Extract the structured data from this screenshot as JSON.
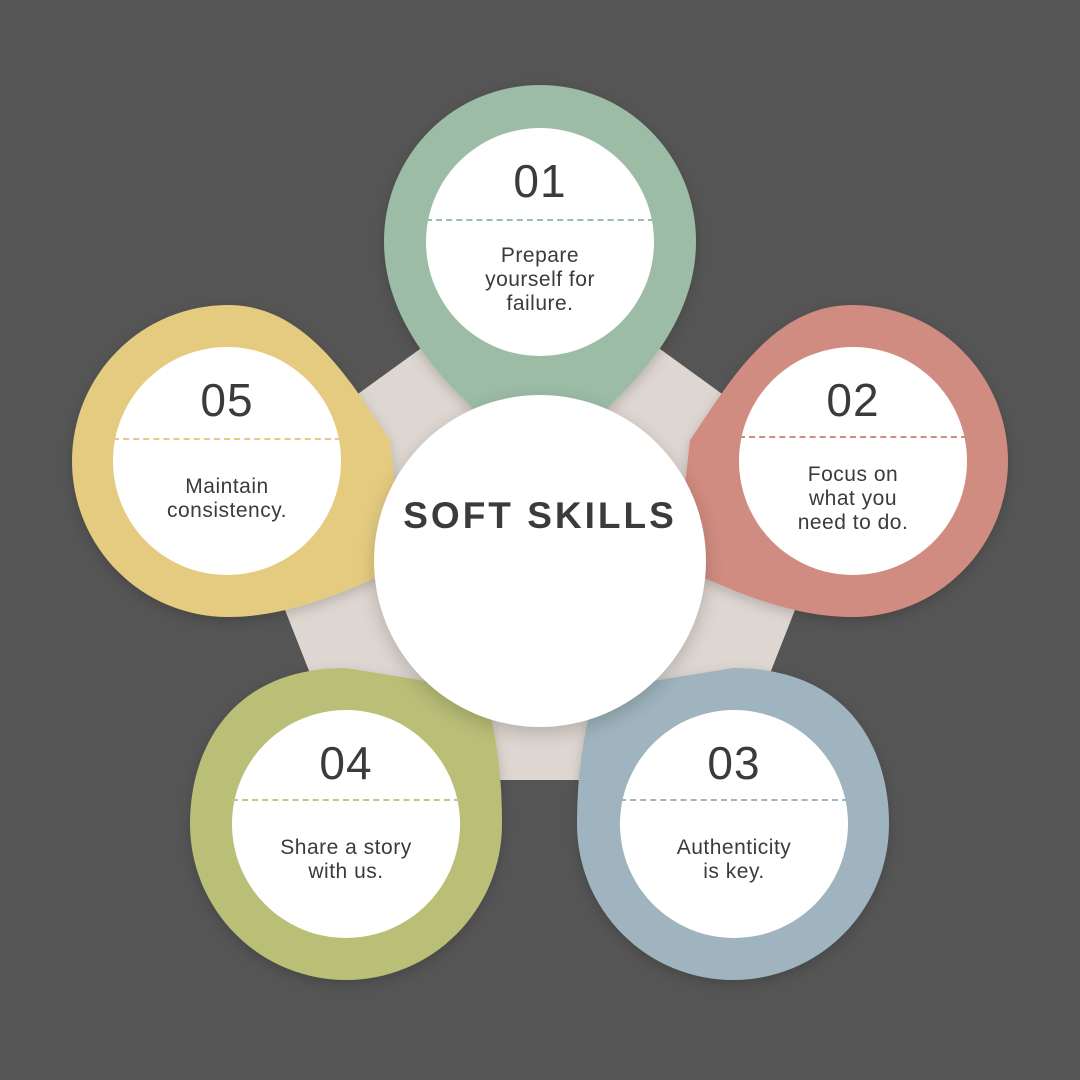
{
  "title": "SOFT SKILLS",
  "colors": {
    "background": "#555555",
    "pentagon": "#ded6d0",
    "text": "#3b3b3b"
  },
  "steps": [
    {
      "number": "01",
      "text": "Prepare\nyourself for\nfailure.",
      "color": "#9cbca6",
      "dash": "#9cbcb0"
    },
    {
      "number": "02",
      "text": "Focus on\nwhat you\nneed to do.",
      "color": "#d08c80",
      "dash": "#d08c80"
    },
    {
      "number": "03",
      "text": "Authenticity\nis key.",
      "color": "#9fb4bf",
      "dash": "#9fb4bf"
    },
    {
      "number": "04",
      "text": "Share a story\nwith us.",
      "color": "#b9bf77",
      "dash": "#c4c489"
    },
    {
      "number": "05",
      "text": "Maintain\nconsistency.",
      "color": "#e5cb80",
      "dash": "#e5cb80"
    }
  ]
}
